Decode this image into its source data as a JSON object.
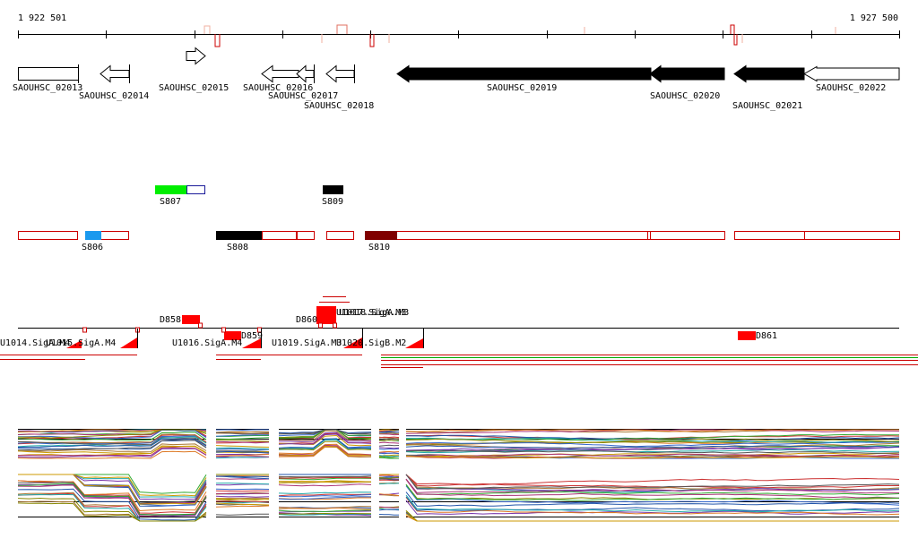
{
  "coords": {
    "start": "1 922 501",
    "end": "1 927 500"
  },
  "genes": [
    {
      "label": "SAOUHSC_02013",
      "fill": "white",
      "dir": "none"
    },
    {
      "label": "SAOUHSC_02014",
      "fill": "white",
      "dir": "left"
    },
    {
      "label": "SAOUHSC_02015",
      "fill": "white",
      "dir": "right"
    },
    {
      "label": "SAOUHSC_02016",
      "fill": "white",
      "dir": "left"
    },
    {
      "label": "SAOUHSC_02017",
      "fill": "white",
      "dir": "left"
    },
    {
      "label": "SAOUHSC_02018",
      "fill": "white",
      "dir": "left"
    },
    {
      "label": "SAOUHSC_02019",
      "fill": "black",
      "dir": "left"
    },
    {
      "label": "SAOUHSC_02020",
      "fill": "black",
      "dir": "left"
    },
    {
      "label": "SAOUHSC_02021",
      "fill": "black",
      "dir": "left"
    },
    {
      "label": "SAOUHSC_02022",
      "fill": "white",
      "dir": "left"
    }
  ],
  "segments": [
    {
      "label": "S807",
      "color": "#00ee00",
      "outline": "#1a1a99"
    },
    {
      "label": "S809",
      "color": "#000000"
    },
    {
      "label": "S806",
      "color": "#1a99ee",
      "outline": "#cc0000"
    },
    {
      "label": "S808",
      "color": "#000000",
      "outline": "#cc0000"
    },
    {
      "label": "S810",
      "color": "#800000",
      "outline": "#cc0000"
    }
  ],
  "features": [
    {
      "label": "D858"
    },
    {
      "label": "D859"
    },
    {
      "label": "D860"
    },
    {
      "label": "U1017.SigA.M3"
    },
    {
      "label": "U1018.SigA.M3"
    },
    {
      "label": "D861"
    },
    {
      "label": "U1014.SigA.M4"
    },
    {
      "label": "U1015.SigA.M4"
    },
    {
      "label": "U1016.SigA.M4"
    },
    {
      "label": "U1019.SigA.M3"
    },
    {
      "label": "U1020.SigB.M2"
    }
  ],
  "colors": {
    "outline": "#cc0000",
    "feature": "#ff0000",
    "axis": "#000000",
    "green": "#00aa00"
  }
}
